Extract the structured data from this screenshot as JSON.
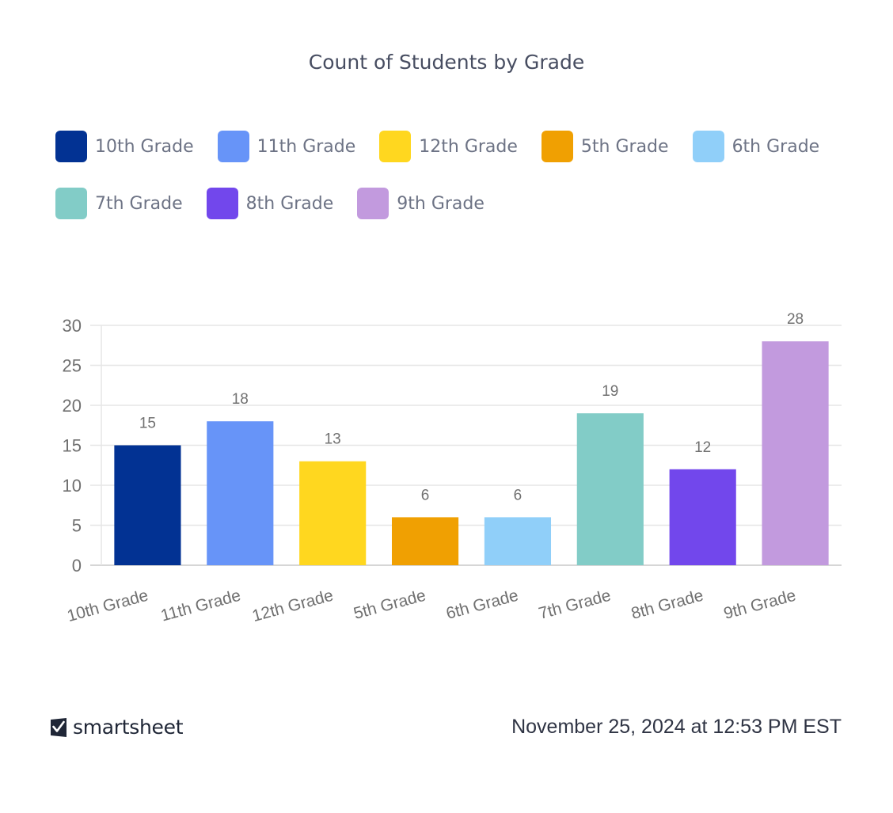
{
  "chart_data": {
    "type": "bar",
    "title": "Count of Students by Grade",
    "categories": [
      "10th Grade",
      "11th Grade",
      "12th Grade",
      "5th Grade",
      "6th Grade",
      "7th Grade",
      "8th Grade",
      "9th Grade"
    ],
    "values": [
      15,
      18,
      13,
      6,
      6,
      19,
      12,
      28
    ],
    "colors": [
      "#023293",
      "#6794f8",
      "#ffd71f",
      "#f0a002",
      "#90cff9",
      "#82ccc7",
      "#7247ec",
      "#c29ade"
    ],
    "ylim": [
      0,
      30
    ],
    "yticks": [
      0,
      5,
      10,
      15,
      20,
      25,
      30
    ],
    "grid": true,
    "legend_position": "top",
    "data_labels": true
  },
  "legend": {
    "rows": [
      [
        {
          "label": "10th Grade",
          "color": "#023293"
        },
        {
          "label": "11th Grade",
          "color": "#6794f8"
        },
        {
          "label": "12th Grade",
          "color": "#ffd71f"
        },
        {
          "label": "5th Grade",
          "color": "#f0a002"
        },
        {
          "label": "6th Grade",
          "color": "#90cff9"
        }
      ],
      [
        {
          "label": "7th Grade",
          "color": "#82ccc7"
        },
        {
          "label": "8th Grade",
          "color": "#7247ec"
        },
        {
          "label": "9th Grade",
          "color": "#c29ade"
        }
      ]
    ]
  },
  "footer": {
    "brand": "smartsheet",
    "logo_icon": "smartsheet-checkmark-icon",
    "timestamp": "November 25, 2024 at 12:53 PM EST"
  }
}
